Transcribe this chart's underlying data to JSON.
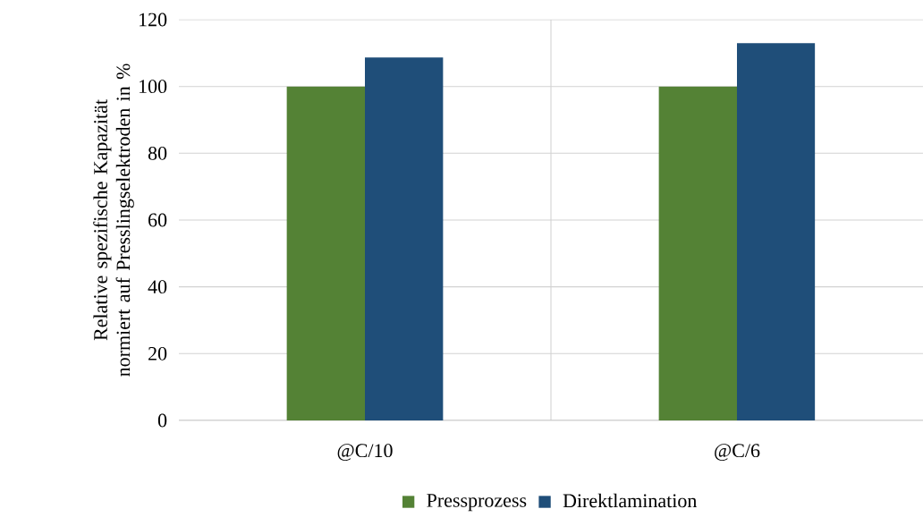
{
  "chart_data": {
    "type": "bar",
    "ylabel": "Relative spezifische Kapazität normiert auf Presslingselektroden in %",
    "categories": [
      "@C/10",
      "@C/6"
    ],
    "series": [
      {
        "name": "Pressprozess",
        "color": "#548235",
        "values": [
          100,
          100
        ]
      },
      {
        "name": "Direktlamination",
        "color": "#1f4e79",
        "values": [
          108.7,
          113
        ]
      }
    ],
    "ylim": [
      0,
      120
    ],
    "yticks": [
      0,
      20,
      40,
      60,
      80,
      100,
      120
    ],
    "grid": true,
    "legend": "bottom"
  }
}
